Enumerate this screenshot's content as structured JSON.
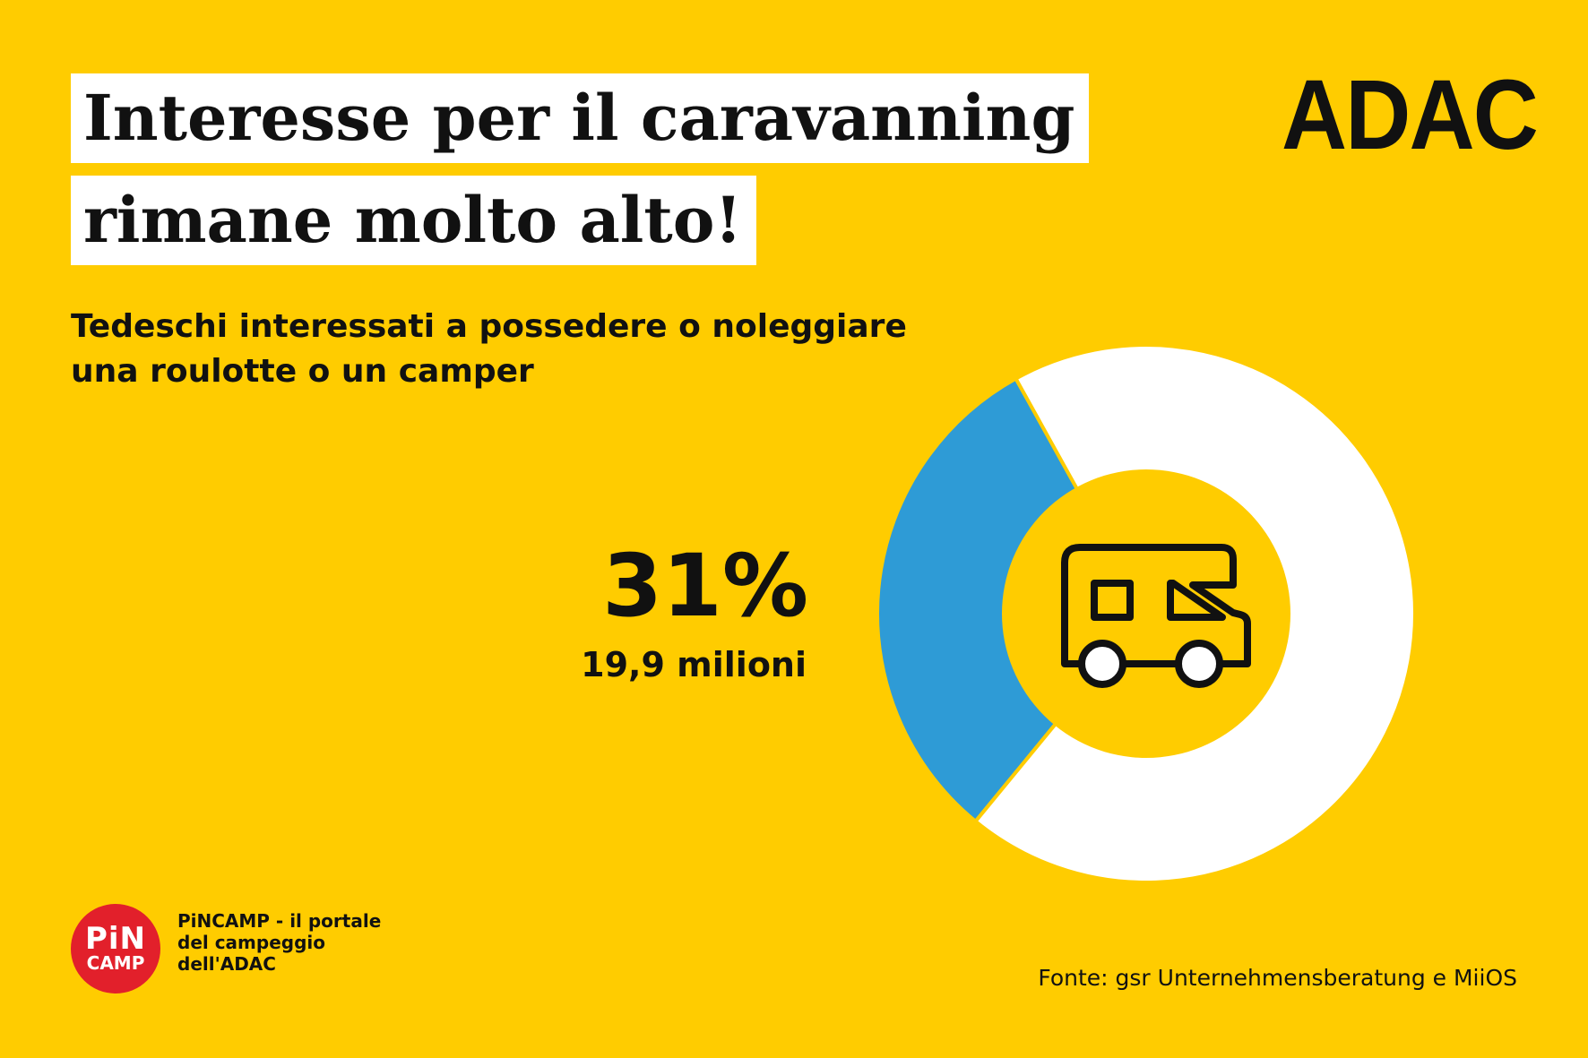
{
  "header": {
    "title_line1": "Interesse per il caravanning",
    "title_line2": "rimane molto alto!",
    "logo": "ADAC"
  },
  "subtitle": "Tedeschi interessati a possedere o noleggiare una roulotte o un camper",
  "chart_data": {
    "type": "pie",
    "variant": "donut",
    "slices": [
      {
        "value": 31,
        "color": "#2E9BD6"
      },
      {
        "value": 69,
        "color": "#FFFFFF"
      }
    ],
    "highlight": {
      "value_label": "31%",
      "count_label": "19,9 milioni"
    },
    "center_icon": "camper-van-icon"
  },
  "colors": {
    "background": "#FFCC00",
    "accent_blue": "#2E9BD6",
    "pincamp_red": "#E2202B"
  },
  "footer": {
    "badge_line1": "PiN",
    "badge_line2": "CAMP",
    "pincamp_text": "PiNCAMP - il portale del campeggio dell'ADAC",
    "source": "Fonte: gsr Unternehmensberatung e MiiOS"
  }
}
